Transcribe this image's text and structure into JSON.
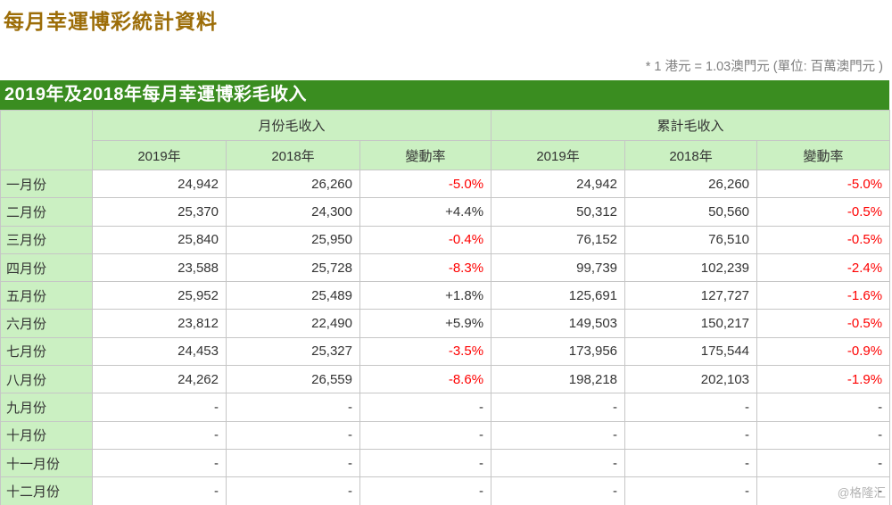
{
  "page": {
    "title": "每月幸運博彩統計資料",
    "note": "* 1 港元 = 1.03澳門元 (單位: 百萬澳門元  )",
    "watermark": "@格隆汇"
  },
  "colors": {
    "title_color": "#9c6d08",
    "note_color": "#7f7f7f",
    "banner_bg": "#3a8d20",
    "header_bg": "#cbf0c2",
    "negative_color": "#fe0000",
    "text_color": "#333333",
    "watermark_color": "#b5b5b5"
  },
  "chart_data": {
    "type": "table",
    "title": "2019年及2018年每月幸運博彩毛收入",
    "unit_note": "* 1 港元 = 1.03澳門元 (單位: 百萬澳門元  )",
    "column_groups": [
      {
        "label": "月份毛收入",
        "span": 3
      },
      {
        "label": "累計毛收入",
        "span": 3
      }
    ],
    "sub_headers": [
      "2019年",
      "2018年",
      "變動率",
      "2019年",
      "2018年",
      "變動率"
    ],
    "row_header": "",
    "rows": [
      [
        "一月份",
        "24,942",
        "26,260",
        "-5.0%",
        "24,942",
        "26,260",
        "-5.0%"
      ],
      [
        "二月份",
        "25,370",
        "24,300",
        "+4.4%",
        "50,312",
        "50,560",
        "-0.5%"
      ],
      [
        "三月份",
        "25,840",
        "25,950",
        "-0.4%",
        "76,152",
        "76,510",
        "-0.5%"
      ],
      [
        "四月份",
        "23,588",
        "25,728",
        "-8.3%",
        "99,739",
        "102,239",
        "-2.4%"
      ],
      [
        "五月份",
        "25,952",
        "25,489",
        "+1.8%",
        "125,691",
        "127,727",
        "-1.6%"
      ],
      [
        "六月份",
        "23,812",
        "22,490",
        "+5.9%",
        "149,503",
        "150,217",
        "-0.5%"
      ],
      [
        "七月份",
        "24,453",
        "25,327",
        "-3.5%",
        "173,956",
        "175,544",
        "-0.9%"
      ],
      [
        "八月份",
        "24,262",
        "26,559",
        "-8.6%",
        "198,218",
        "202,103",
        "-1.9%"
      ],
      [
        "九月份",
        "-",
        "-",
        "-",
        "-",
        "-",
        "-"
      ],
      [
        "十月份",
        "-",
        "-",
        "-",
        "-",
        "-",
        "-"
      ],
      [
        "十一月份",
        "-",
        "-",
        "-",
        "-",
        "-",
        "-"
      ],
      [
        "十二月份",
        "-",
        "-",
        "-",
        "-",
        "-",
        "-"
      ]
    ]
  }
}
